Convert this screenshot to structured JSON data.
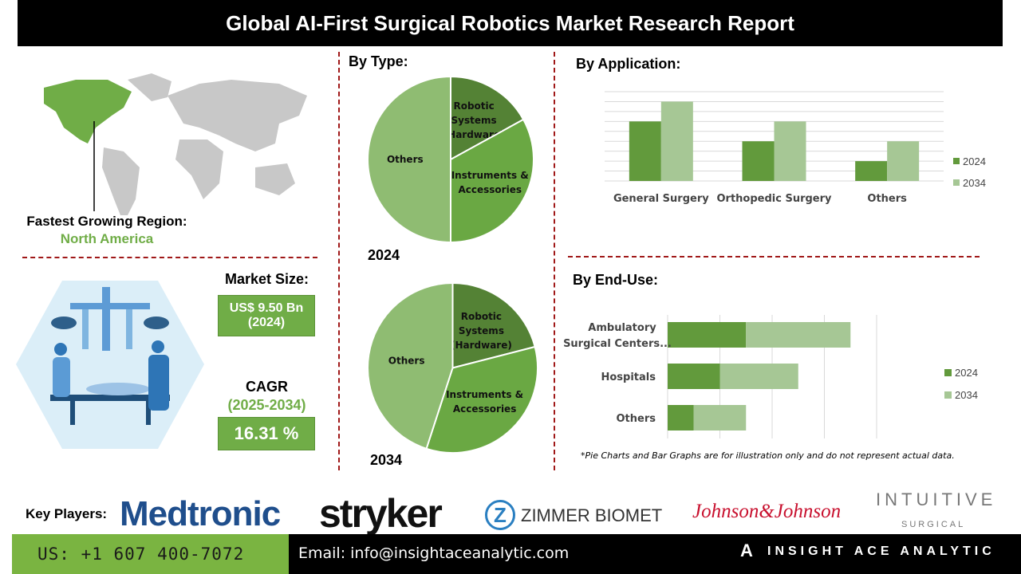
{
  "title": "Global AI-First Surgical Robotics Market Research Report",
  "region": {
    "label": "Fastest Growing Region:",
    "value": "North America"
  },
  "market_size": {
    "label": "Market Size:",
    "value": "US$ 9.50 Bn",
    "year": "(2024)"
  },
  "cagr": {
    "label": "CAGR",
    "period": "(2025-2034)",
    "value": "16.31 %"
  },
  "colors": {
    "dark_green": "#548235",
    "mid_green": "#6aa843",
    "light_green": "#8fbc72",
    "bar_2024": "#629a3c",
    "bar_2034": "#a6c795",
    "accent_red": "#a01818"
  },
  "chart_data": [
    {
      "type": "pie",
      "title": "By Type:",
      "caption": "2024",
      "labels": [
        "Robotic Systems (Hardware)",
        "Instruments & Accessories",
        "Others"
      ],
      "values": [
        17,
        33,
        50
      ]
    },
    {
      "type": "pie",
      "caption": "2034",
      "labels": [
        "Robotic Systems (Hardware)",
        "Instruments & Accessories",
        "Others"
      ],
      "values": [
        21,
        34,
        45
      ]
    },
    {
      "type": "bar",
      "title": "By Application:",
      "categories": [
        "General Surgery",
        "Orthopedic Surgery",
        "Others"
      ],
      "series": [
        {
          "name": "2024",
          "values": [
            6,
            4,
            2
          ]
        },
        {
          "name": "2034",
          "values": [
            8,
            6,
            4
          ]
        }
      ],
      "ylim": [
        0,
        9
      ],
      "grid": true,
      "legend": "right"
    },
    {
      "type": "bar",
      "orientation": "horizontal-stacked",
      "title": "By End-Use:",
      "categories": [
        "Ambulatory Surgical Centers...",
        "Hospitals",
        "Others"
      ],
      "series": [
        {
          "name": "2024",
          "values": [
            1.5,
            1.0,
            0.5
          ]
        },
        {
          "name": "2034",
          "values": [
            2.0,
            1.5,
            1.0
          ]
        }
      ],
      "xlim": [
        0,
        4
      ],
      "grid": true,
      "legend": "right"
    }
  ],
  "note": "*Pie Charts and Bar Graphs are for illustration only and do not represent actual data.",
  "key_players": {
    "label": "Key Players:",
    "companies": [
      "Medtronic",
      "stryker",
      "ZIMMER BIOMET",
      "Johnson&Johnson",
      "INTUITIVE",
      "SURGICAL"
    ]
  },
  "footer": {
    "phone": "US: +1 607 400-7072",
    "email": "Email: info@insightaceanalytic.com",
    "brand": "INSIGHT ACE ANALYTIC"
  }
}
